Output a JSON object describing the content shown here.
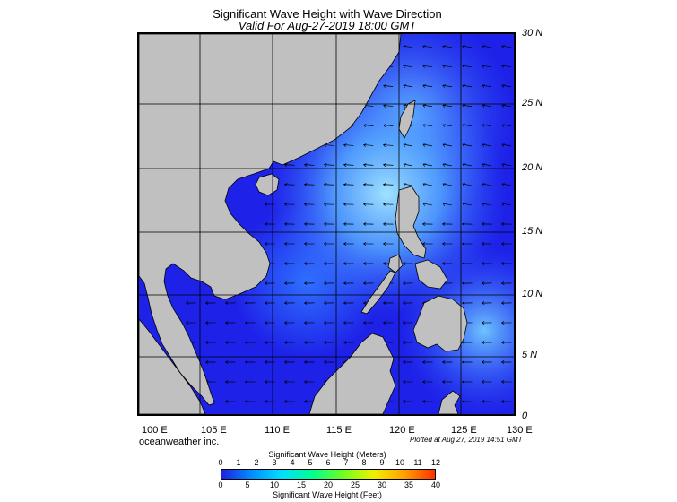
{
  "header": {
    "title": "Significant Wave Height with Wave Direction",
    "subtitle": "Valid For Aug-27-2019 18:00 GMT"
  },
  "map": {
    "lat_labels": [
      "30 N",
      "25 N",
      "20 N",
      "15 N",
      "10 N",
      "5 N",
      "0"
    ],
    "lon_labels": [
      "100 E",
      "105 E",
      "110 E",
      "115 E",
      "120 E",
      "125 E",
      "130 E"
    ],
    "colors": {
      "land": "#c0c0c0",
      "low": "#1e22e8",
      "mid": "#3c8cff",
      "high": "#9fe2ff"
    }
  },
  "footer": {
    "brand": "oceanweather inc.",
    "plotted": "Plotted at Aug 27, 2019 14:51 GMT"
  },
  "colorbar": {
    "meters_title": "Significant Wave Height (Meters)",
    "feet_title": "Significant Wave Height (Feet)",
    "meters_ticks": [
      "0",
      "1",
      "2",
      "3",
      "4",
      "5",
      "6",
      "7",
      "8",
      "9",
      "10",
      "11",
      "12"
    ],
    "feet_ticks": [
      "0",
      "5",
      "10",
      "15",
      "20",
      "25",
      "30",
      "35",
      "40"
    ],
    "colors": [
      "#2020e0",
      "#0090ff",
      "#00e0ff",
      "#00ff90",
      "#70ff20",
      "#f0f000",
      "#ffa000",
      "#ff3000"
    ]
  }
}
